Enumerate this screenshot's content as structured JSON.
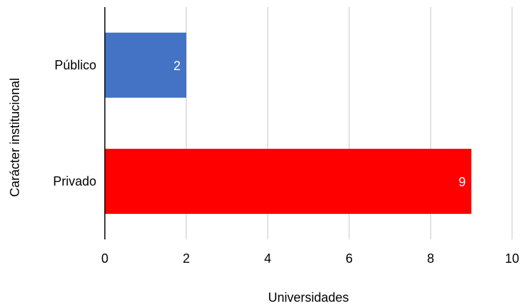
{
  "chart_data": {
    "type": "bar",
    "orientation": "horizontal",
    "categories": [
      "Público",
      "Privado"
    ],
    "values": [
      2,
      9
    ],
    "data_labels": [
      "2",
      "9"
    ],
    "bar_colors": [
      "#4472c4",
      "#ff0000"
    ],
    "xlabel": "Universidades",
    "ylabel": "Carácter institucional",
    "xlim": [
      0,
      10
    ],
    "xticks": [
      0,
      2,
      4,
      6,
      8,
      10
    ],
    "xtick_labels": [
      "0",
      "2",
      "4",
      "6",
      "8",
      "10"
    ],
    "grid": "vertical",
    "legend": "none"
  },
  "colors": {
    "grid": "#d9d9d9",
    "axis": "#000000",
    "label_text": "#ffffff"
  }
}
